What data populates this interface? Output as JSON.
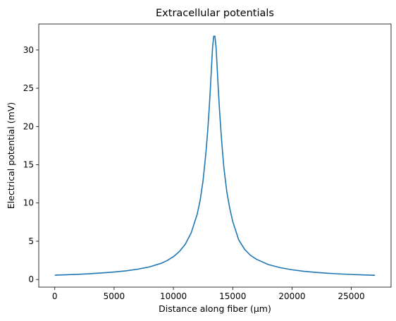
{
  "chart_data": {
    "type": "line",
    "title": "Extracellular potentials",
    "xlabel": "Distance along fiber (μm)",
    "ylabel": "Electrical potential (mV)",
    "xlim": [
      -1350,
      28350
    ],
    "ylim": [
      -1.0,
      33.4
    ],
    "x_ticks": [
      0,
      5000,
      10000,
      15000,
      20000,
      25000
    ],
    "y_ticks": [
      0,
      5,
      10,
      15,
      20,
      25,
      30
    ],
    "grid": false,
    "line_color": "#1f77b4",
    "series": [
      {
        "x": [
          0,
          1000,
          2000,
          3000,
          4000,
          5000,
          6000,
          7000,
          8000,
          9000,
          9500,
          10000,
          10500,
          11000,
          11500,
          12000,
          12250,
          12500,
          12750,
          12900,
          13000,
          13100,
          13200,
          13300,
          13400,
          13500,
          13600,
          13700,
          13800,
          13900,
          14000,
          14100,
          14250,
          14500,
          14750,
          15000,
          15500,
          16000,
          16500,
          17000,
          18000,
          19000,
          20000,
          21000,
          22000,
          23000,
          24000,
          25000,
          26000,
          27000
        ],
        "y": [
          0.56,
          0.62,
          0.68,
          0.76,
          0.86,
          0.98,
          1.13,
          1.35,
          1.65,
          2.13,
          2.5,
          2.98,
          3.65,
          4.6,
          6.1,
          8.5,
          10.3,
          12.9,
          16.7,
          19.6,
          21.9,
          24.5,
          27.4,
          30.3,
          31.8,
          31.8,
          30.3,
          27.4,
          24.5,
          21.9,
          19.6,
          17.5,
          14.7,
          11.5,
          9.3,
          7.6,
          5.2,
          3.95,
          3.15,
          2.65,
          1.95,
          1.55,
          1.27,
          1.07,
          0.93,
          0.82,
          0.73,
          0.66,
          0.6,
          0.55
        ]
      }
    ]
  }
}
